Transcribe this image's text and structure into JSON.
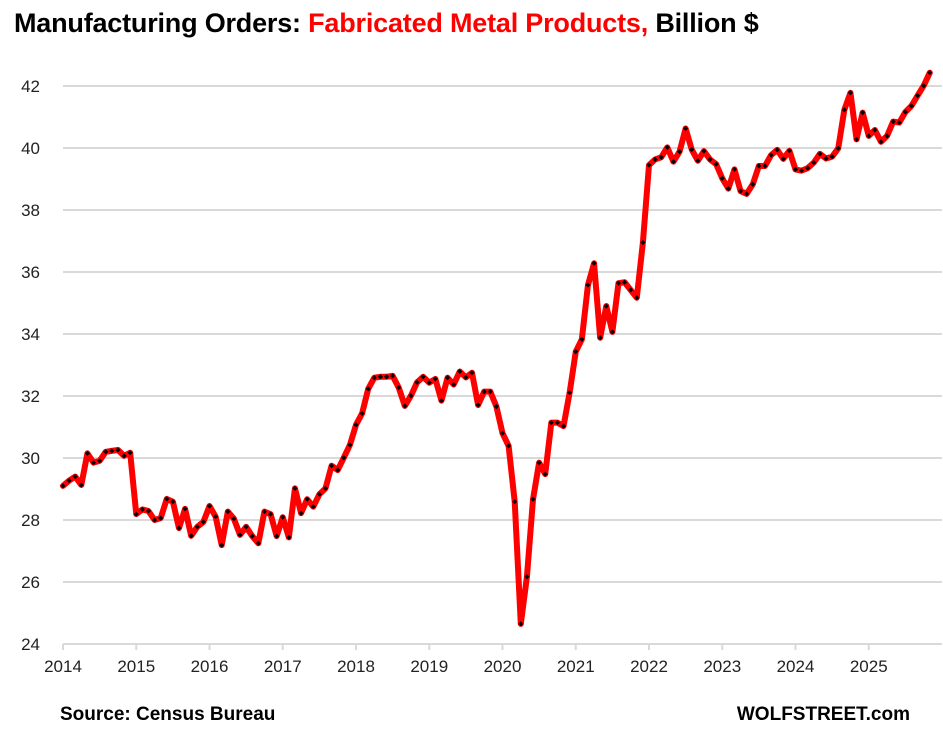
{
  "title": {
    "part1": "Manufacturing Orders: ",
    "highlight": "Fabricated Metal Products,",
    "part2": " Billion $"
  },
  "footer": {
    "source": "Source: Census Bureau",
    "brand": "WOLFSTREET.com"
  },
  "colors": {
    "line": "#ff0000",
    "markers": "#000000",
    "grid": "#d9d9d9",
    "title_highlight": "#ff0000"
  },
  "chart_data": {
    "type": "line",
    "title": "Manufacturing Orders: Fabricated Metal Products, Billion $",
    "xlabel": "",
    "ylabel": "",
    "xlim": [
      2014,
      2026
    ],
    "ylim": [
      24,
      43
    ],
    "x_ticks": [
      "2014",
      "2015",
      "2016",
      "2017",
      "2018",
      "2019",
      "2020",
      "2021",
      "2022",
      "2023",
      "2024",
      "2025"
    ],
    "y_ticks": [
      "24",
      "26",
      "28",
      "30",
      "32",
      "34",
      "36",
      "38",
      "40",
      "42"
    ],
    "grid": "horizontal",
    "frequency": "monthly",
    "x_start": "2014-01",
    "x_end": "2025-11",
    "series": [
      {
        "values": [
          29.1,
          29.27,
          29.4,
          29.13,
          30.15,
          29.85,
          29.91,
          30.2,
          30.23,
          30.26,
          30.07,
          30.17,
          28.19,
          28.34,
          28.29,
          28.0,
          28.06,
          28.68,
          28.59,
          27.74,
          28.36,
          27.49,
          27.78,
          27.94,
          28.45,
          28.11,
          27.19,
          28.27,
          28.04,
          27.52,
          27.78,
          27.48,
          27.25,
          28.27,
          28.19,
          27.48,
          28.09,
          27.44,
          29.02,
          28.22,
          28.67,
          28.43,
          28.83,
          29.02,
          29.75,
          29.61,
          30.01,
          30.42,
          31.07,
          31.44,
          32.23,
          32.59,
          32.62,
          32.62,
          32.65,
          32.27,
          31.68,
          32.01,
          32.44,
          32.62,
          32.43,
          32.55,
          31.85,
          32.59,
          32.37,
          32.79,
          32.6,
          32.75,
          31.71,
          32.14,
          32.14,
          31.66,
          30.8,
          30.39,
          28.59,
          24.65,
          26.17,
          28.67,
          29.85,
          29.48,
          31.14,
          31.14,
          31.03,
          32.11,
          33.43,
          33.83,
          35.58,
          36.28,
          33.88,
          34.9,
          34.07,
          35.64,
          35.67,
          35.42,
          35.17,
          36.95,
          39.45,
          39.63,
          39.7,
          40.02,
          39.56,
          39.88,
          40.63,
          39.95,
          39.59,
          39.9,
          39.63,
          39.48,
          39.02,
          38.69,
          39.31,
          38.61,
          38.52,
          38.83,
          39.42,
          39.42,
          39.77,
          39.94,
          39.65,
          39.91,
          39.31,
          39.27,
          39.35,
          39.53,
          39.81,
          39.66,
          39.72,
          39.99,
          41.23,
          41.78,
          40.28,
          41.14,
          40.39,
          40.58,
          40.2,
          40.39,
          40.85,
          40.82,
          41.16,
          41.36,
          41.69,
          42.01,
          42.43
        ]
      }
    ]
  }
}
